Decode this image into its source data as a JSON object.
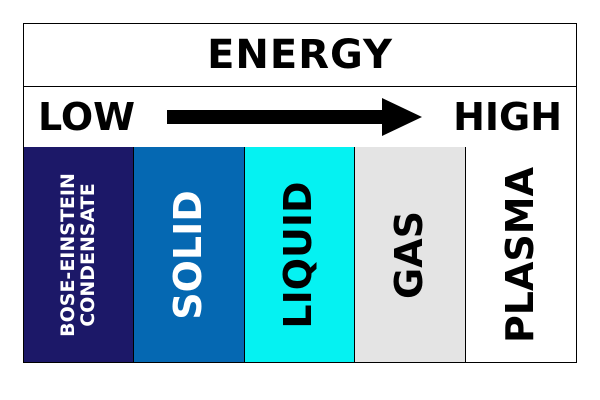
{
  "title": "ENERGY",
  "scale": {
    "low": "LOW",
    "high": "HIGH"
  },
  "states": [
    {
      "lines": [
        "BOSE-EINSTEIN",
        "CONDENSATE"
      ],
      "bg": "#1c1868",
      "fg": "#ffffff"
    },
    {
      "lines": [
        "SOLID"
      ],
      "bg": "#0568b2",
      "fg": "#ffffff"
    },
    {
      "lines": [
        "LIQUID"
      ],
      "bg": "#05f2f2",
      "fg": "#000000"
    },
    {
      "lines": [
        "GAS"
      ],
      "bg": "#e4e4e4",
      "fg": "#000000"
    },
    {
      "lines": [
        "PLASMA"
      ],
      "bg": "#ffffff",
      "fg": "#000000"
    }
  ],
  "colors": {
    "border": "#000000",
    "arrow": "#000000"
  }
}
